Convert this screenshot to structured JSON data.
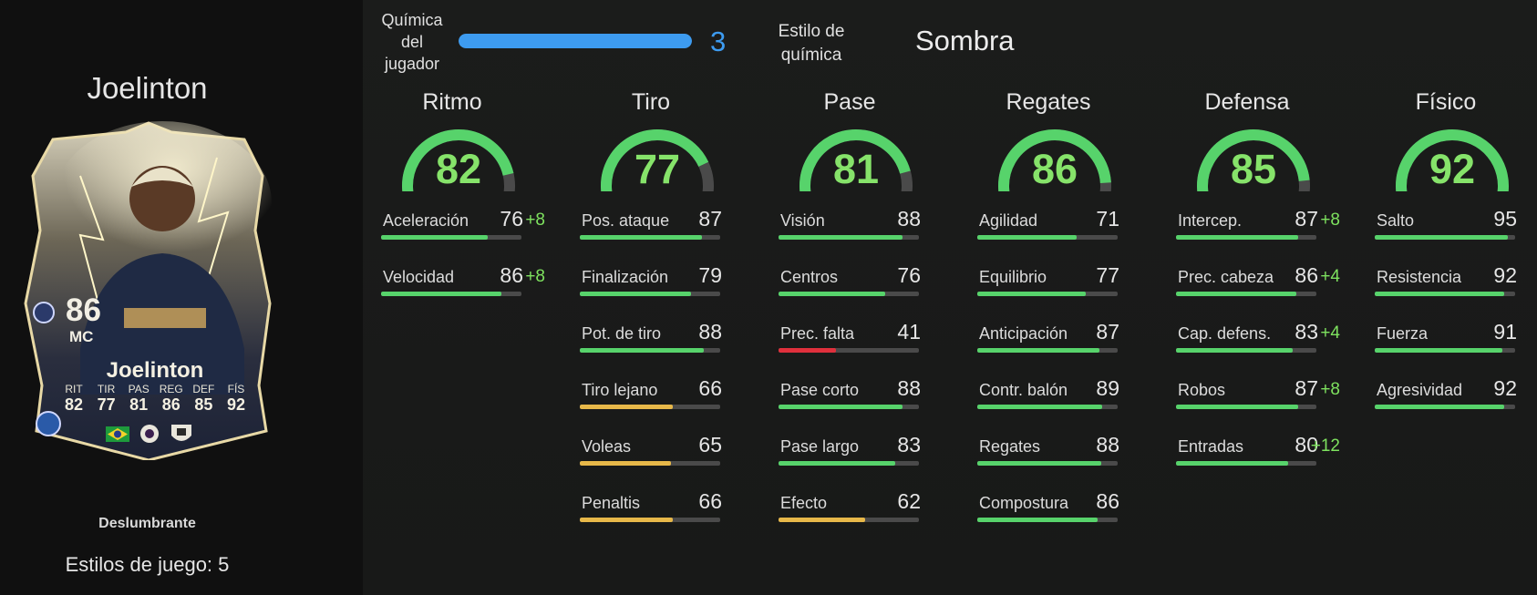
{
  "player": {
    "name": "Joelinton",
    "rating": "86",
    "position": "MC",
    "card_stats": [
      {
        "label": "RIT",
        "value": "82"
      },
      {
        "label": "TIR",
        "value": "77"
      },
      {
        "label": "PAS",
        "value": "81"
      },
      {
        "label": "REG",
        "value": "86"
      },
      {
        "label": "DEF",
        "value": "85"
      },
      {
        "label": "FÍS",
        "value": "92"
      }
    ],
    "playstyle_plus": "Deslumbrante",
    "playstyles": "Estilos de juego: 5",
    "flag_icon": "brazil-flag-icon",
    "league_icon": "premier-league-icon",
    "club_icon": "newcastle-crest-icon"
  },
  "chemistry": {
    "label": "Química del jugador",
    "value": "3",
    "fill_fraction": 1.0,
    "style_label": "Estilo de química",
    "style_value": "Sombra"
  },
  "colors": {
    "green": "#57d36b",
    "gold": "#e7b849",
    "red": "#e0303c",
    "blue": "#3d9bf0"
  },
  "categories": [
    {
      "title": "Ritmo",
      "value": "82",
      "stats": [
        {
          "name": "Aceleración",
          "value": "76",
          "boost": "+8",
          "color": "green"
        },
        {
          "name": "Velocidad",
          "value": "86",
          "boost": "+8",
          "color": "green"
        }
      ]
    },
    {
      "title": "Tiro",
      "value": "77",
      "stats": [
        {
          "name": "Pos. ataque",
          "value": "87",
          "boost": "",
          "color": "green"
        },
        {
          "name": "Finalización",
          "value": "79",
          "boost": "",
          "color": "green"
        },
        {
          "name": "Pot. de tiro",
          "value": "88",
          "boost": "",
          "color": "green"
        },
        {
          "name": "Tiro lejano",
          "value": "66",
          "boost": "",
          "color": "gold"
        },
        {
          "name": "Voleas",
          "value": "65",
          "boost": "",
          "color": "gold"
        },
        {
          "name": "Penaltis",
          "value": "66",
          "boost": "",
          "color": "gold"
        }
      ]
    },
    {
      "title": "Pase",
      "value": "81",
      "stats": [
        {
          "name": "Visión",
          "value": "88",
          "boost": "",
          "color": "green"
        },
        {
          "name": "Centros",
          "value": "76",
          "boost": "",
          "color": "green"
        },
        {
          "name": "Prec. falta",
          "value": "41",
          "boost": "",
          "color": "red"
        },
        {
          "name": "Pase corto",
          "value": "88",
          "boost": "",
          "color": "green"
        },
        {
          "name": "Pase largo",
          "value": "83",
          "boost": "",
          "color": "green"
        },
        {
          "name": "Efecto",
          "value": "62",
          "boost": "",
          "color": "gold"
        }
      ]
    },
    {
      "title": "Regates",
      "value": "86",
      "stats": [
        {
          "name": "Agilidad",
          "value": "71",
          "boost": "",
          "color": "green"
        },
        {
          "name": "Equilibrio",
          "value": "77",
          "boost": "",
          "color": "green"
        },
        {
          "name": "Anticipación",
          "value": "87",
          "boost": "",
          "color": "green"
        },
        {
          "name": "Contr. balón",
          "value": "89",
          "boost": "",
          "color": "green"
        },
        {
          "name": "Regates",
          "value": "88",
          "boost": "",
          "color": "green"
        },
        {
          "name": "Compostura",
          "value": "86",
          "boost": "",
          "color": "green"
        }
      ]
    },
    {
      "title": "Defensa",
      "value": "85",
      "stats": [
        {
          "name": "Intercep.",
          "value": "87",
          "boost": "+8",
          "color": "green"
        },
        {
          "name": "Prec. cabeza",
          "value": "86",
          "boost": "+4",
          "color": "green"
        },
        {
          "name": "Cap. defens.",
          "value": "83",
          "boost": "+4",
          "color": "green"
        },
        {
          "name": "Robos",
          "value": "87",
          "boost": "+8",
          "color": "green"
        },
        {
          "name": "Entradas",
          "value": "80",
          "boost": "+12",
          "color": "green"
        }
      ]
    },
    {
      "title": "Físico",
      "value": "92",
      "stats": [
        {
          "name": "Salto",
          "value": "95",
          "boost": "",
          "color": "green"
        },
        {
          "name": "Resistencia",
          "value": "92",
          "boost": "",
          "color": "green"
        },
        {
          "name": "Fuerza",
          "value": "91",
          "boost": "",
          "color": "green"
        },
        {
          "name": "Agresividad",
          "value": "92",
          "boost": "",
          "color": "green"
        }
      ]
    }
  ]
}
